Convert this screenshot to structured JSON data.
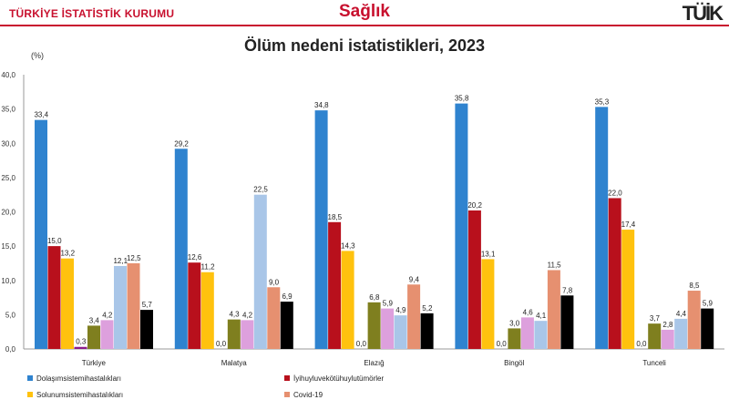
{
  "header": {
    "org": "TÜRKİYE İSTATİSTİK KURUMU",
    "section": "Sağlık",
    "logo": "TÜİK"
  },
  "colors": {
    "brand": "#c8102e",
    "series": [
      "#2f83cf",
      "#b8101c",
      "#ffc20e",
      "#8b1a8b",
      "#7f7f1f",
      "#dda0dd",
      "#a9c6e8",
      "#e69070"
    ]
  },
  "chart_data": {
    "type": "bar",
    "title": "Ölüm nedeni istatistikleri, 2023",
    "ylabel": "(%)",
    "xlabel": "",
    "ylim": [
      0,
      40
    ],
    "yticks": [
      "0,0",
      "5,0",
      "10,0",
      "15,0",
      "20,0",
      "25,0",
      "30,0",
      "35,0",
      "40,0"
    ],
    "grid": false,
    "legend_position": "bottom",
    "categories": [
      "Türkiye",
      "Malatya",
      "Elazığ",
      "Bingöl",
      "Tunceli"
    ],
    "series": [
      {
        "name": "Dolaşımsistemihastalıkları",
        "values": [
          33.4,
          29.2,
          34.8,
          35.8,
          35.3
        ],
        "labels": [
          "33,4",
          "29,2",
          "34,8",
          "35,8",
          "35,3"
        ]
      },
      {
        "name": "İyihuyluvekötühuylutümörler",
        "values": [
          15.0,
          12.6,
          18.5,
          20.2,
          22.0
        ],
        "labels": [
          "15,0",
          "12,6",
          "18,5",
          "20,2",
          "22,0"
        ]
      },
      {
        "name": "Solunumsistemihastalıkları",
        "values": [
          13.2,
          11.2,
          14.3,
          13.1,
          17.4
        ],
        "labels": [
          "13,2",
          "11,2",
          "14,3",
          "13,1",
          "17,4"
        ]
      },
      {
        "name": "",
        "values": [
          0.3,
          0.0,
          0.0,
          0.0,
          0.0
        ],
        "labels": [
          "0,3",
          "0,0",
          "0,0",
          "0,0",
          "0,0"
        ]
      },
      {
        "name": "",
        "values": [
          3.4,
          4.3,
          6.8,
          3.0,
          3.7
        ],
        "labels": [
          "3,4",
          "4,3",
          "6,8",
          "3,0",
          "3,7"
        ]
      },
      {
        "name": "",
        "values": [
          4.2,
          4.2,
          5.9,
          4.6,
          2.8
        ],
        "labels": [
          "4,2",
          "4,2",
          "5,9",
          "4,6",
          "2,8"
        ]
      },
      {
        "name": "",
        "values": [
          12.1,
          22.5,
          4.9,
          4.1,
          4.4
        ],
        "labels": [
          "12,1",
          "22,5",
          "4,9",
          "4,1",
          "4,4"
        ]
      },
      {
        "name": "Covid-19",
        "values": [
          12.5,
          9.0,
          9.4,
          11.5,
          8.5
        ],
        "labels": [
          "12,5",
          "9,0",
          "9,4",
          "11,5",
          "8,5"
        ]
      },
      {
        "name": "",
        "values": [
          5.7,
          6.9,
          5.2,
          7.8,
          5.9
        ],
        "labels": [
          "5,7",
          "6,9",
          "5,2",
          "7,8",
          "5,9"
        ]
      }
    ],
    "legend": [
      "Dolaşımsistemihastalıkları",
      "İyihuyluvekötühuylutümörler",
      "Solunumsistemihastalıkları",
      "Covid-19"
    ]
  }
}
